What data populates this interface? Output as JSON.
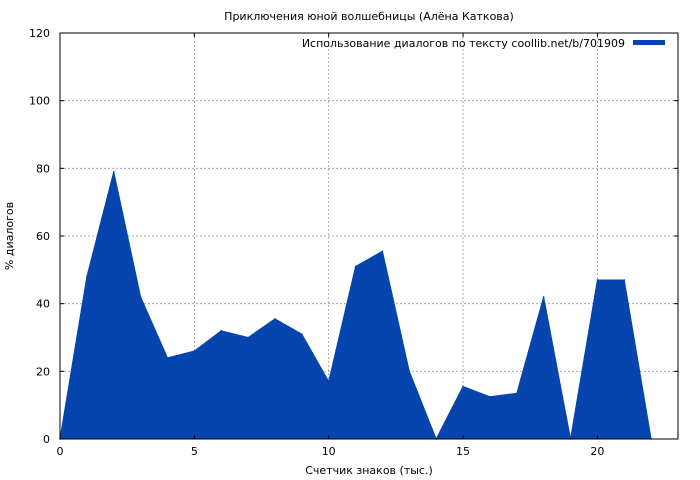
{
  "chart_data": {
    "type": "area",
    "title": "Приключения юной волшебницы (Алёна Каткова)",
    "xlabel": "Счетчик знаков (тыс.)",
    "ylabel": "% диалогов",
    "xlim": [
      0,
      23
    ],
    "ylim": [
      0,
      120
    ],
    "xticks": [
      0,
      5,
      10,
      15,
      20
    ],
    "yticks": [
      0,
      20,
      40,
      60,
      80,
      100,
      120
    ],
    "grid": true,
    "legend_position": "top-right",
    "series": [
      {
        "name": "Использование диалогов по тексту coollib.net/b/701909",
        "color": "#0645ad",
        "x": [
          0,
          1,
          2,
          3,
          4,
          5,
          6,
          7,
          8,
          9,
          10,
          11,
          12,
          13,
          14,
          15,
          16,
          17,
          18,
          19,
          20,
          21,
          22
        ],
        "y": [
          0,
          48,
          79,
          42,
          24,
          26,
          32,
          30,
          35.5,
          31,
          17,
          51,
          55.5,
          20,
          0,
          15.5,
          12.5,
          13.5,
          42,
          0,
          47,
          47,
          0
        ]
      }
    ]
  }
}
